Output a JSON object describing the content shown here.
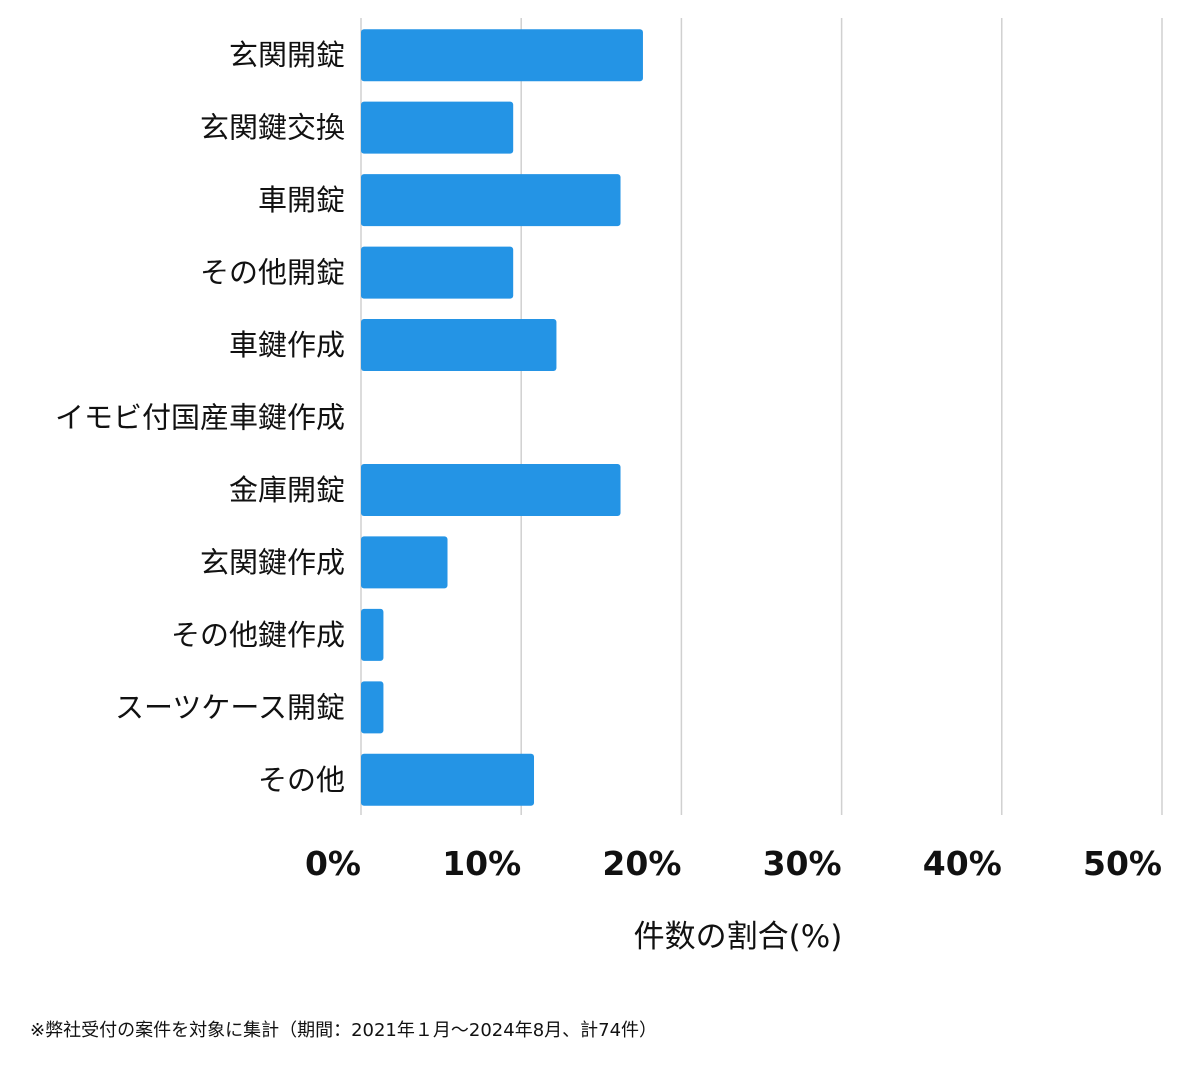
{
  "chart_data": {
    "type": "bar",
    "orientation": "horizontal",
    "categories": [
      "玄関開錠",
      "玄関鍵交換",
      "車開錠",
      "その他開錠",
      "車鍵作成",
      "イモビ付国産車鍵作成",
      "金庫開錠",
      "玄関鍵作成",
      "その他鍵作成",
      "スーツケース開錠",
      "その他"
    ],
    "values": [
      17.6,
      9.5,
      16.2,
      9.5,
      12.2,
      0,
      16.2,
      5.4,
      1.4,
      1.4,
      10.8
    ],
    "xlabel": "件数の割合(%)",
    "ylabel": "",
    "xlim": [
      0,
      50
    ],
    "xticks": [
      "0%",
      "10%",
      "20%",
      "30%",
      "40%",
      "50%"
    ],
    "grid": "vertical",
    "bar_color": "#2494e5"
  },
  "footnote": "※弊社受付の案件を対象に集計（期間：2021年１月〜2024年8月、計74件）"
}
